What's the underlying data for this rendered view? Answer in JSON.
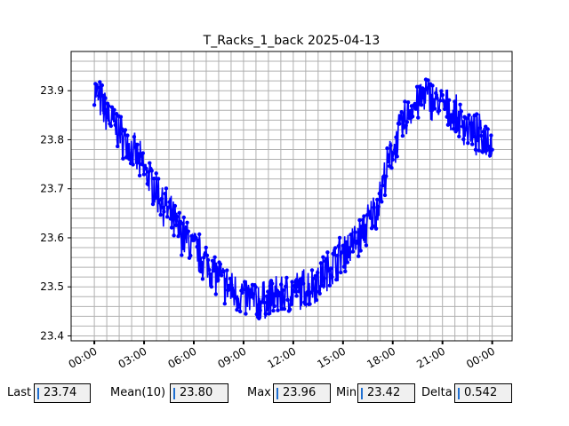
{
  "chart_data": {
    "type": "line",
    "title": "T_Racks_1_back 2025-04-13",
    "xlabel": "",
    "ylabel": "",
    "x_ticks": [
      "00:00",
      "03:00",
      "06:00",
      "09:00",
      "12:00",
      "15:00",
      "18:00",
      "21:00",
      "00:00"
    ],
    "y_ticks": [
      "23.4",
      "23.5",
      "23.6",
      "23.7",
      "23.8",
      "23.9"
    ],
    "xlim_hours": [
      -1.4,
      25.2
    ],
    "ylim": [
      23.39,
      23.98
    ],
    "grid": true,
    "series": [
      {
        "color": "#0000ff",
        "marker": "circle",
        "x_hours": [
          0,
          1,
          2,
          3,
          4,
          5,
          6,
          7,
          8,
          9,
          10,
          11,
          12,
          13,
          14,
          15,
          16,
          17,
          18,
          19,
          20,
          21,
          22,
          23,
          24
        ],
        "y": [
          23.9,
          23.84,
          23.79,
          23.74,
          23.68,
          23.62,
          23.58,
          23.54,
          23.5,
          23.48,
          23.47,
          23.48,
          23.49,
          23.5,
          23.53,
          23.57,
          23.6,
          23.66,
          23.78,
          23.86,
          23.89,
          23.87,
          23.84,
          23.81,
          23.8
        ]
      }
    ]
  },
  "stats": [
    {
      "label": "Last",
      "value": "23.74"
    },
    {
      "label": "Mean(10)",
      "value": "23.80"
    },
    {
      "label": "Max",
      "value": "23.96"
    },
    {
      "label": "Min",
      "value": "23.42"
    },
    {
      "label": "Delta",
      "value": "0.542"
    }
  ]
}
